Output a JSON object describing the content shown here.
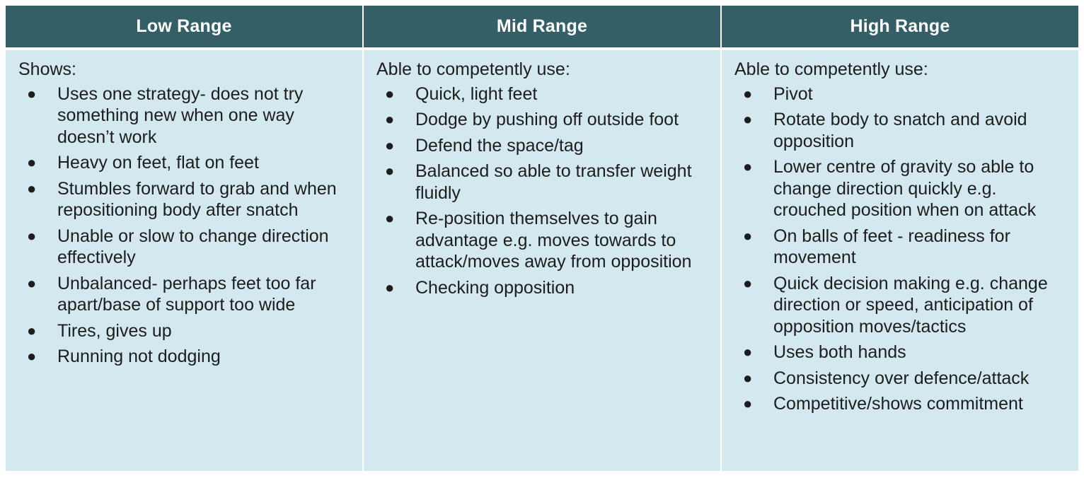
{
  "headers": [
    "Low Range",
    "Mid Range",
    "High Range"
  ],
  "columns": [
    {
      "intro": "Shows:",
      "items": [
        "Uses one strategy- does not try something new when one way doesn’t work",
        "Heavy on feet, flat on feet",
        "Stumbles forward to grab and when repositioning body after snatch",
        "Unable or slow to change direction effectively",
        "Unbalanced- perhaps feet too far apart/base of support too wide",
        "Tires, gives up",
        "Running not dodging"
      ]
    },
    {
      "intro": "Able to competently use:",
      "items": [
        "Quick, light feet",
        "Dodge by pushing off outside foot",
        "Defend the space/tag",
        "Balanced so able to transfer weight fluidly",
        "Re-position themselves to gain advantage e.g. moves towards to attack/moves away from opposition",
        "Checking opposition"
      ]
    },
    {
      "intro": "Able to competently use:",
      "items": [
        "Pivot",
        "Rotate body to snatch and avoid opposition",
        "Lower centre of gravity so able to change direction quickly e.g. crouched position when on attack",
        "On balls of feet - readiness for movement",
        "Quick decision making e.g. change direction or speed, anticipation of opposition moves/tactics",
        "Uses both hands",
        "Consistency over defence/attack",
        "Competitive/shows commitment"
      ]
    }
  ],
  "colors": {
    "header_bg": "#355f66",
    "header_text": "#ffffff",
    "cell_bg": "#d3e8ef",
    "body_text": "#1d1d1d"
  }
}
